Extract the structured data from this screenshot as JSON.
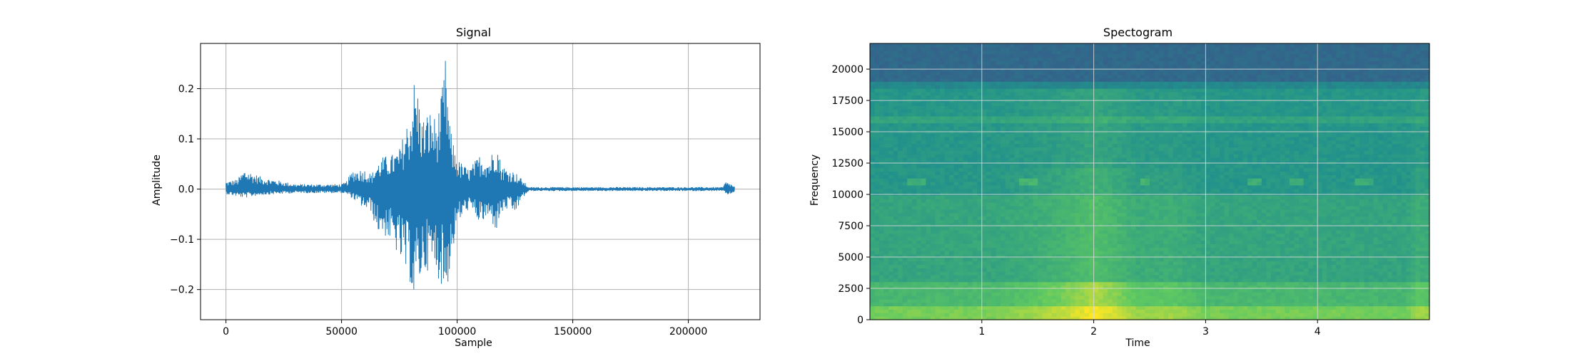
{
  "chart_data": [
    {
      "type": "line",
      "title": "Signal",
      "xlabel": "Sample",
      "ylabel": "Amplitude",
      "xlim": [
        -11000,
        231000
      ],
      "ylim": [
        -0.26,
        0.29
      ],
      "grid": true,
      "line_color": "#1f77b4",
      "x_ticks": [
        {
          "value": 0,
          "label": "0"
        },
        {
          "value": 50000,
          "label": "50000"
        },
        {
          "value": 100000,
          "label": "100000"
        },
        {
          "value": 150000,
          "label": "150000"
        },
        {
          "value": 200000,
          "label": "200000"
        }
      ],
      "y_ticks": [
        {
          "value": -0.2,
          "label": "−0.2"
        },
        {
          "value": -0.1,
          "label": "−0.1"
        },
        {
          "value": 0.0,
          "label": "0.0"
        },
        {
          "value": 0.1,
          "label": "0.1"
        },
        {
          "value": 0.2,
          "label": "0.2"
        }
      ],
      "x_range": [
        0,
        220000
      ],
      "envelope": [
        {
          "x": 0,
          "min": -0.01,
          "max": 0.015
        },
        {
          "x": 5000,
          "min": -0.015,
          "max": 0.02
        },
        {
          "x": 8000,
          "min": -0.018,
          "max": 0.04
        },
        {
          "x": 15000,
          "min": -0.012,
          "max": 0.025
        },
        {
          "x": 30000,
          "min": -0.008,
          "max": 0.01
        },
        {
          "x": 50000,
          "min": -0.008,
          "max": 0.01
        },
        {
          "x": 52000,
          "min": -0.01,
          "max": 0.015
        },
        {
          "x": 55000,
          "min": -0.02,
          "max": 0.04
        },
        {
          "x": 60000,
          "min": -0.04,
          "max": 0.04
        },
        {
          "x": 63000,
          "min": -0.045,
          "max": 0.03
        },
        {
          "x": 65000,
          "min": -0.085,
          "max": 0.05
        },
        {
          "x": 68000,
          "min": -0.09,
          "max": 0.065
        },
        {
          "x": 72000,
          "min": -0.11,
          "max": 0.07
        },
        {
          "x": 75000,
          "min": -0.14,
          "max": 0.08
        },
        {
          "x": 78000,
          "min": -0.175,
          "max": 0.13
        },
        {
          "x": 80000,
          "min": -0.19,
          "max": 0.16
        },
        {
          "x": 81000,
          "min": -0.235,
          "max": 0.225
        },
        {
          "x": 83000,
          "min": -0.2,
          "max": 0.2
        },
        {
          "x": 85000,
          "min": -0.17,
          "max": 0.14
        },
        {
          "x": 88000,
          "min": -0.16,
          "max": 0.16
        },
        {
          "x": 91000,
          "min": -0.17,
          "max": 0.14
        },
        {
          "x": 93000,
          "min": -0.19,
          "max": 0.18
        },
        {
          "x": 95000,
          "min": -0.22,
          "max": 0.265
        },
        {
          "x": 97000,
          "min": -0.16,
          "max": 0.12
        },
        {
          "x": 100000,
          "min": -0.07,
          "max": 0.06
        },
        {
          "x": 105000,
          "min": -0.04,
          "max": 0.04
        },
        {
          "x": 110000,
          "min": -0.07,
          "max": 0.07
        },
        {
          "x": 114000,
          "min": -0.06,
          "max": 0.06
        },
        {
          "x": 117000,
          "min": -0.085,
          "max": 0.1
        },
        {
          "x": 119000,
          "min": -0.05,
          "max": 0.05
        },
        {
          "x": 122000,
          "min": -0.04,
          "max": 0.04
        },
        {
          "x": 125000,
          "min": -0.05,
          "max": 0.035
        },
        {
          "x": 128000,
          "min": -0.02,
          "max": 0.02
        },
        {
          "x": 131000,
          "min": -0.004,
          "max": 0.004
        },
        {
          "x": 200000,
          "min": -0.004,
          "max": 0.004
        },
        {
          "x": 215000,
          "min": -0.004,
          "max": 0.004
        },
        {
          "x": 216000,
          "min": -0.01,
          "max": 0.015
        },
        {
          "x": 218000,
          "min": -0.012,
          "max": 0.012
        },
        {
          "x": 220000,
          "min": -0.005,
          "max": 0.005
        }
      ]
    },
    {
      "type": "heatmap",
      "title": "Spectogram",
      "xlabel": "Time",
      "ylabel": "Frequency",
      "xlim": [
        0.0,
        5.0
      ],
      "ylim": [
        0,
        22050
      ],
      "grid": true,
      "colormap": "viridis",
      "x_ticks": [
        {
          "value": 1,
          "label": "1"
        },
        {
          "value": 2,
          "label": "2"
        },
        {
          "value": 3,
          "label": "3"
        },
        {
          "value": 4,
          "label": "4"
        }
      ],
      "y_ticks": [
        {
          "value": 0,
          "label": "0"
        },
        {
          "value": 2500,
          "label": "2500"
        },
        {
          "value": 5000,
          "label": "5000"
        },
        {
          "value": 7500,
          "label": "7500"
        },
        {
          "value": 10000,
          "label": "10000"
        },
        {
          "value": 12500,
          "label": "12500"
        },
        {
          "value": 15000,
          "label": "15000"
        },
        {
          "value": 17500,
          "label": "17500"
        },
        {
          "value": 20000,
          "label": "20000"
        }
      ],
      "bands": [
        {
          "f_min": 0,
          "f_max": 1000,
          "intensity": 0.78
        },
        {
          "f_min": 1000,
          "f_max": 3000,
          "intensity": 0.66
        },
        {
          "f_min": 3000,
          "f_max": 10000,
          "intensity": 0.58
        },
        {
          "f_min": 10000,
          "f_max": 18500,
          "intensity": 0.52
        },
        {
          "f_min": 18500,
          "f_max": 19000,
          "intensity": 0.46
        },
        {
          "f_min": 19000,
          "f_max": 22050,
          "intensity": 0.34
        }
      ],
      "time_activity": [
        {
          "t": 0.0,
          "boost": 0.0
        },
        {
          "t": 1.1,
          "boost": 0.02
        },
        {
          "t": 1.4,
          "boost": 0.06
        },
        {
          "t": 1.7,
          "boost": 0.12
        },
        {
          "t": 1.9,
          "boost": 0.18
        },
        {
          "t": 2.0,
          "boost": 0.22
        },
        {
          "t": 2.2,
          "boost": 0.15
        },
        {
          "t": 2.4,
          "boost": 0.06
        },
        {
          "t": 2.7,
          "boost": 0.08
        },
        {
          "t": 3.0,
          "boost": 0.01
        },
        {
          "t": 4.8,
          "boost": 0.0
        },
        {
          "t": 4.9,
          "boost": 0.08
        },
        {
          "t": 5.0,
          "boost": 0.05
        }
      ],
      "tone_line": {
        "freq": 16000,
        "boost": 0.06
      },
      "blips": [
        {
          "t_start": 0.35,
          "t_end": 0.48,
          "freq": 10950
        },
        {
          "t_start": 1.35,
          "t_end": 1.48,
          "freq": 10950
        },
        {
          "t_start": 2.4,
          "t_end": 2.5,
          "freq": 10950
        },
        {
          "t_start": 3.38,
          "t_end": 3.5,
          "freq": 10950
        },
        {
          "t_start": 3.75,
          "t_end": 3.88,
          "freq": 10950
        },
        {
          "t_start": 4.35,
          "t_end": 4.48,
          "freq": 10950
        }
      ]
    }
  ]
}
